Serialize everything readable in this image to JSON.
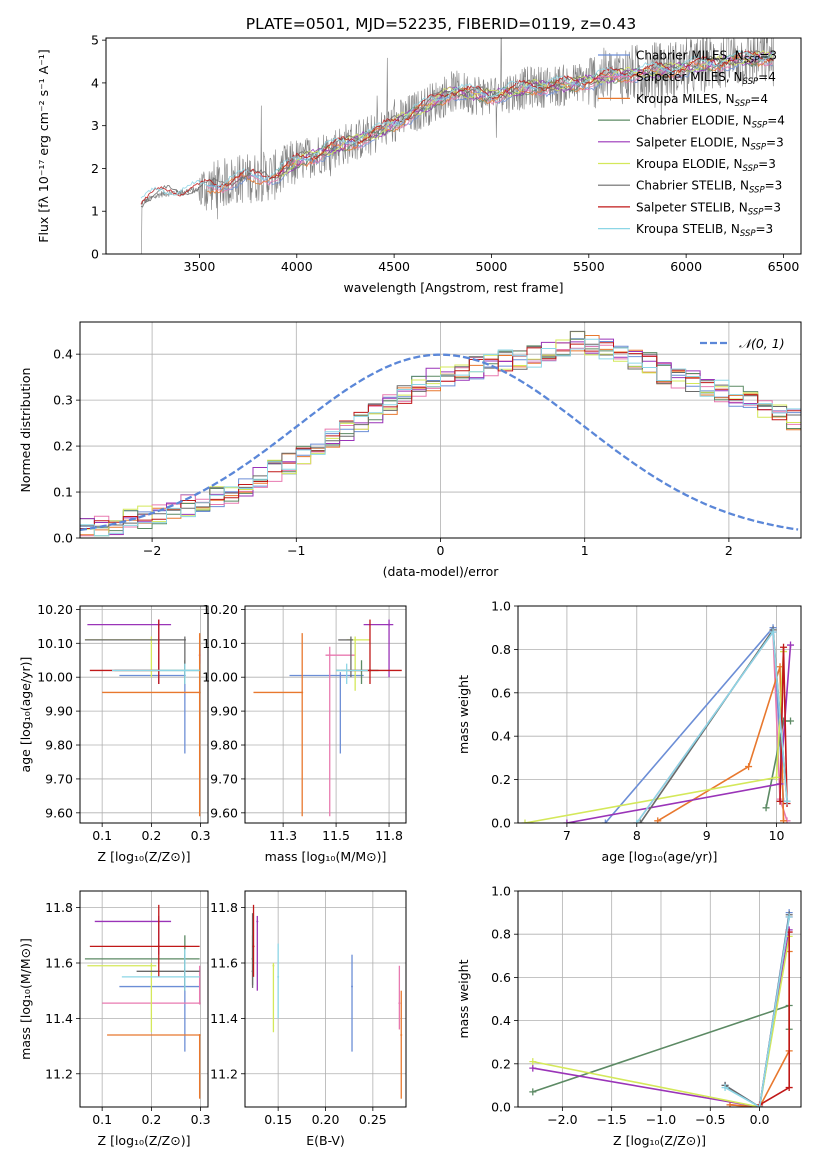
{
  "figure": {
    "title": "PLATE=0501, MJD=52235, FIBERID=0119, z=0.43"
  },
  "colors": {
    "chabrier_miles": "#6c8ed6",
    "salpeter_miles": "#e87ab0",
    "kroupa_miles": "#e8782e",
    "chabrier_elodie": "#5c8a64",
    "salpeter_elodie": "#9a34b8",
    "kroupa_elodie": "#d4e85a",
    "chabrier_stelib": "#6a6a6a",
    "salpeter_stelib": "#c01818",
    "kroupa_stelib": "#8cd6e6",
    "spectrum": "#808080",
    "gaussian": "#5b87d8",
    "grid": "#b0b0b0"
  },
  "chart_data": [
    {
      "id": "spectrum",
      "type": "line",
      "title": "PLATE=0501, MJD=52235, FIBERID=0119, z=0.43",
      "xlabel": "wavelength [Angstrom, rest frame]",
      "ylabel": "Flux [fλ 10⁻¹⁷ erg cm⁻² s⁻¹ A⁻¹]",
      "xlim": [
        3020,
        6590
      ],
      "ylim": [
        0,
        5.05
      ],
      "xticks": [
        3500,
        4000,
        4500,
        5000,
        5500,
        6000,
        6500
      ],
      "yticks": [
        0,
        1,
        2,
        3,
        4,
        5
      ],
      "grid": false,
      "legend_position": "upper-right",
      "legend": [
        "Chabrier MILES, N_SSP=3",
        "Salpeter MILES, N_SSP=4",
        "Kroupa MILES, N_SSP=4",
        "Chabrier ELODIE, N_SSP=4",
        "Salpeter ELODIE, N_SSP=3",
        "Kroupa ELODIE, N_SSP=3",
        "Chabrier STELIB, N_SSP=3",
        "Salpeter STELIB, N_SSP=3",
        "Kroupa STELIB, N_SSP=3"
      ],
      "continuum_wavelength": [
        3200,
        3300,
        3500,
        3700,
        3900,
        4000,
        4200,
        4400,
        4600,
        4800,
        5000,
        5200,
        5400,
        5600,
        5800,
        6000,
        6200,
        6400,
        6450
      ],
      "continuum_flux": [
        1.2,
        1.4,
        1.5,
        1.75,
        1.85,
        2.15,
        2.5,
        2.8,
        3.3,
        3.8,
        3.7,
        3.9,
        3.95,
        4.15,
        4.25,
        4.35,
        4.5,
        4.6,
        4.6
      ]
    },
    {
      "id": "residuals",
      "type": "histogram",
      "xlabel": "(data-model)/error",
      "ylabel": "Normed distribution",
      "xlim": [
        -2.5,
        2.5
      ],
      "ylim": [
        0,
        0.47
      ],
      "xticks": [
        -2,
        -1,
        0,
        1,
        2
      ],
      "yticks": [
        0.0,
        0.1,
        0.2,
        0.3,
        0.4
      ],
      "grid": true,
      "legend_position": "upper-right",
      "legend": [
        "𝒩(0, 1)"
      ],
      "bin_width": 0.1,
      "bin_start": -2.5,
      "model_heights": [
        0.02,
        0.025,
        0.03,
        0.04,
        0.045,
        0.05,
        0.06,
        0.07,
        0.08,
        0.09,
        0.1,
        0.115,
        0.13,
        0.145,
        0.16,
        0.18,
        0.2,
        0.215,
        0.235,
        0.255,
        0.27,
        0.29,
        0.31,
        0.33,
        0.345,
        0.355,
        0.36,
        0.37,
        0.375,
        0.385,
        0.39,
        0.395,
        0.41,
        0.42,
        0.43,
        0.42,
        0.41,
        0.4,
        0.39,
        0.38,
        0.36,
        0.35,
        0.34,
        0.33,
        0.32,
        0.31,
        0.3,
        0.28,
        0.27,
        0.26,
        0.24,
        0.225,
        0.21,
        0.19,
        0.175,
        0.16,
        0.145,
        0.13,
        0.12,
        0.11,
        0.1,
        0.09,
        0.08,
        0.07,
        0.06,
        0.05,
        0.045,
        0.04,
        0.03,
        0.025,
        0.02
      ]
    },
    {
      "id": "age_vs_Z",
      "type": "scatter",
      "xlabel": "Z [log₁₀(Z/Z⊙)]",
      "ylabel": "age  [log₁₀(age/yr)]",
      "xlim": [
        0.055,
        0.315
      ],
      "ylim": [
        9.57,
        10.21
      ],
      "xticks": [
        0.1,
        0.2,
        0.3
      ],
      "yticks": [
        9.6,
        9.7,
        9.8,
        9.9,
        10.0,
        10.1,
        10.2
      ],
      "grid": true,
      "points": [
        {
          "model": "chabrier_miles",
          "x": 0.268,
          "y": 10.005,
          "xerr": [
            0.135,
            0.268
          ],
          "yerr": [
            9.775,
            10.015
          ]
        },
        {
          "model": "salpeter_miles",
          "x": 0.298,
          "y": 10.065,
          "xerr": [
            0.298,
            0.298
          ],
          "yerr": [
            10.04,
            10.09
          ]
        },
        {
          "model": "kroupa_miles",
          "x": 0.298,
          "y": 9.955,
          "xerr": [
            0.1,
            0.298
          ],
          "yerr": [
            9.59,
            10.13
          ]
        },
        {
          "model": "chabrier_elodie",
          "x": 0.268,
          "y": 10.02,
          "xerr": [
            0.125,
            0.298
          ],
          "yerr": [
            9.98,
            10.05
          ]
        },
        {
          "model": "salpeter_elodie",
          "x": 0.215,
          "y": 10.155,
          "xerr": [
            0.07,
            0.24
          ],
          "yerr": [
            9.98,
            10.17
          ]
        },
        {
          "model": "kroupa_elodie",
          "x": 0.2,
          "y": 10.11,
          "xerr": [
            0.065,
            0.21
          ],
          "yerr": [
            10.0,
            10.12
          ]
        },
        {
          "model": "chabrier_stelib",
          "x": 0.268,
          "y": 10.11,
          "xerr": [
            0.065,
            0.27
          ],
          "yerr": [
            10.0,
            10.12
          ]
        },
        {
          "model": "salpeter_stelib",
          "x": 0.215,
          "y": 10.02,
          "xerr": [
            0.075,
            0.215
          ],
          "yerr": [
            9.98,
            10.17
          ]
        },
        {
          "model": "kroupa_stelib",
          "x": 0.268,
          "y": 10.02,
          "xerr": [
            0.12,
            0.298
          ],
          "yerr": [
            9.98,
            10.04
          ]
        }
      ]
    },
    {
      "id": "age_vs_mass",
      "type": "scatter",
      "xlabel": "mass [log₁₀(M/M⊙)]",
      "ylabel": "",
      "xlim": [
        11.07,
        11.83
      ],
      "ylim": [
        9.57,
        10.21
      ],
      "xticks": [
        11.25,
        11.5,
        11.75
      ],
      "yticks": [
        9.6,
        9.7,
        9.8,
        9.9,
        10.0,
        10.1,
        10.2
      ],
      "grid": true,
      "points": [
        {
          "model": "chabrier_miles",
          "x": 11.52,
          "y": 10.005,
          "xerr": [
            11.28,
            11.63
          ],
          "yerr": [
            9.775,
            10.015
          ]
        },
        {
          "model": "salpeter_miles",
          "x": 11.47,
          "y": 10.065,
          "xerr": [
            11.45,
            11.59
          ],
          "yerr": [
            9.59,
            10.09
          ]
        },
        {
          "model": "kroupa_miles",
          "x": 11.34,
          "y": 9.955,
          "xerr": [
            11.11,
            11.34
          ],
          "yerr": [
            9.59,
            10.13
          ]
        },
        {
          "model": "chabrier_elodie",
          "x": 11.62,
          "y": 10.02,
          "xerr": [
            11.5,
            11.7
          ],
          "yerr": [
            9.98,
            10.05
          ]
        },
        {
          "model": "salpeter_elodie",
          "x": 11.75,
          "y": 10.155,
          "xerr": [
            11.63,
            11.77
          ],
          "yerr": [
            10.0,
            10.17
          ]
        },
        {
          "model": "kroupa_elodie",
          "x": 11.59,
          "y": 10.11,
          "xerr": [
            11.55,
            11.66
          ],
          "yerr": [
            9.96,
            10.12
          ]
        },
        {
          "model": "chabrier_stelib",
          "x": 11.57,
          "y": 10.11,
          "xerr": [
            11.51,
            11.58
          ],
          "yerr": [
            10.0,
            10.12
          ]
        },
        {
          "model": "salpeter_stelib",
          "x": 11.66,
          "y": 10.02,
          "xerr": [
            11.55,
            11.81
          ],
          "yerr": [
            9.98,
            10.17
          ]
        },
        {
          "model": "kroupa_stelib",
          "x": 11.55,
          "y": 10.02,
          "xerr": [
            11.5,
            11.65
          ],
          "yerr": [
            9.98,
            10.04
          ]
        }
      ]
    },
    {
      "id": "weight_vs_age",
      "type": "line",
      "xlabel": "age  [log₁₀(age/yr)]",
      "ylabel": "mass weight",
      "xlim": [
        6.3,
        10.35
      ],
      "ylim": [
        0,
        1.0
      ],
      "xticks": [
        7,
        8,
        9,
        10
      ],
      "yticks": [
        0.0,
        0.2,
        0.4,
        0.6,
        0.8,
        1.0
      ],
      "grid": true,
      "series": [
        {
          "model": "chabrier_miles",
          "x": [
            7.55,
            9.95,
            10.1
          ],
          "y": [
            0.0,
            0.9,
            0.1
          ]
        },
        {
          "model": "salpeter_miles",
          "x": [
            8.0,
            9.95,
            10.05,
            10.15
          ],
          "y": [
            0.0,
            0.88,
            0.11,
            0.01
          ]
        },
        {
          "model": "kroupa_miles",
          "x": [
            8.3,
            9.6,
            10.05,
            10.1
          ],
          "y": [
            0.01,
            0.26,
            0.72,
            0.01
          ]
        },
        {
          "model": "chabrier_elodie",
          "x": [
            9.85,
            10.1,
            10.2
          ],
          "y": [
            0.07,
            0.47,
            0.47
          ]
        },
        {
          "model": "salpeter_elodie",
          "x": [
            7.0,
            10.05,
            10.2
          ],
          "y": [
            0.0,
            0.18,
            0.82
          ]
        },
        {
          "model": "kroupa_elodie",
          "x": [
            6.4,
            10.0,
            10.1
          ],
          "y": [
            0.0,
            0.21,
            0.79
          ]
        },
        {
          "model": "chabrier_stelib",
          "x": [
            8.05,
            9.95,
            10.15
          ],
          "y": [
            0.0,
            0.89,
            0.1
          ]
        },
        {
          "model": "salpeter_stelib",
          "x": [
            10.05,
            10.1,
            10.15
          ],
          "y": [
            0.1,
            0.81,
            0.09
          ]
        },
        {
          "model": "kroupa_stelib",
          "x": [
            8.0,
            9.95,
            10.15
          ],
          "y": [
            0.0,
            0.88,
            0.1
          ]
        }
      ]
    },
    {
      "id": "mass_vs_Z",
      "type": "scatter",
      "xlabel": "Z [log₁₀(Z/Z⊙)]",
      "ylabel": "mass [log₁₀(M/M⊙)]",
      "xlim": [
        0.055,
        0.315
      ],
      "ylim": [
        11.08,
        11.86
      ],
      "xticks": [
        0.1,
        0.2,
        0.3
      ],
      "yticks": [
        11.2,
        11.4,
        11.6,
        11.8
      ],
      "grid": true,
      "points": [
        {
          "model": "chabrier_miles",
          "x": 0.268,
          "y": 11.515,
          "xerr": [
            0.135,
            0.298
          ],
          "yerr": [
            11.28,
            11.63
          ]
        },
        {
          "model": "salpeter_miles",
          "x": 0.298,
          "y": 11.455,
          "xerr": [
            0.1,
            0.298
          ],
          "yerr": [
            11.45,
            11.59
          ]
        },
        {
          "model": "kroupa_miles",
          "x": 0.298,
          "y": 11.34,
          "xerr": [
            0.11,
            0.298
          ],
          "yerr": [
            11.11,
            11.34
          ]
        },
        {
          "model": "chabrier_elodie",
          "x": 0.268,
          "y": 11.615,
          "xerr": [
            0.065,
            0.298
          ],
          "yerr": [
            11.5,
            11.7
          ]
        },
        {
          "model": "salpeter_elodie",
          "x": 0.215,
          "y": 11.75,
          "xerr": [
            0.085,
            0.24
          ],
          "yerr": [
            11.63,
            11.77
          ]
        },
        {
          "model": "kroupa_elodie",
          "x": 0.2,
          "y": 11.59,
          "xerr": [
            0.07,
            0.21
          ],
          "yerr": [
            11.35,
            11.6
          ]
        },
        {
          "model": "chabrier_stelib",
          "x": 0.268,
          "y": 11.57,
          "xerr": [
            0.17,
            0.298
          ],
          "yerr": [
            11.51,
            11.58
          ]
        },
        {
          "model": "salpeter_stelib",
          "x": 0.215,
          "y": 11.66,
          "xerr": [
            0.075,
            0.298
          ],
          "yerr": [
            11.55,
            11.81
          ]
        },
        {
          "model": "kroupa_stelib",
          "x": 0.268,
          "y": 11.55,
          "xerr": [
            0.14,
            0.298
          ],
          "yerr": [
            11.5,
            11.65
          ]
        }
      ]
    },
    {
      "id": "mass_vs_ebv",
      "type": "scatter",
      "xlabel": "E(B-V)",
      "ylabel": "",
      "xlim": [
        0.115,
        0.285
      ],
      "ylim": [
        11.08,
        11.86
      ],
      "xticks": [
        0.15,
        0.2,
        0.25
      ],
      "yticks": [
        11.2,
        11.4,
        11.6,
        11.8
      ],
      "grid": true,
      "points": [
        {
          "model": "chabrier_miles",
          "x": 0.228,
          "y": 11.515,
          "yerr": [
            11.28,
            11.63
          ]
        },
        {
          "model": "salpeter_miles",
          "x": 0.278,
          "y": 11.455,
          "yerr": [
            11.36,
            11.59
          ]
        },
        {
          "model": "kroupa_miles",
          "x": 0.28,
          "y": 11.34,
          "yerr": [
            11.11,
            11.5
          ]
        },
        {
          "model": "chabrier_elodie",
          "x": 0.123,
          "y": 11.615,
          "yerr": [
            11.52,
            11.7
          ]
        },
        {
          "model": "salpeter_elodie",
          "x": 0.128,
          "y": 11.75,
          "yerr": [
            11.5,
            11.77
          ]
        },
        {
          "model": "kroupa_elodie",
          "x": 0.145,
          "y": 11.59,
          "yerr": [
            11.35,
            11.6
          ]
        },
        {
          "model": "chabrier_stelib",
          "x": 0.123,
          "y": 11.57,
          "yerr": [
            11.51,
            11.78
          ]
        },
        {
          "model": "salpeter_stelib",
          "x": 0.124,
          "y": 11.66,
          "yerr": [
            11.55,
            11.81
          ]
        },
        {
          "model": "kroupa_stelib",
          "x": 0.15,
          "y": 11.55,
          "yerr": [
            11.4,
            11.67
          ]
        }
      ]
    },
    {
      "id": "weight_vs_Z",
      "type": "line",
      "xlabel": "Z [log₁₀(Z/Z⊙)]",
      "ylabel": "mass weight",
      "xlim": [
        -2.45,
        0.42
      ],
      "ylim": [
        0,
        1.0
      ],
      "xticks": [
        -2.0,
        -1.5,
        -1.0,
        -0.5,
        0.0
      ],
      "yticks": [
        0.0,
        0.2,
        0.4,
        0.6,
        0.8,
        1.0
      ],
      "grid": true,
      "series": [
        {
          "model": "chabrier_miles",
          "x": [
            -0.35,
            0.0,
            0.3
          ],
          "y": [
            0.1,
            0.0,
            0.9
          ]
        },
        {
          "model": "salpeter_miles",
          "x": [
            -0.3,
            0.0,
            0.3
          ],
          "y": [
            0.01,
            0.0,
            0.88
          ]
        },
        {
          "model": "kroupa_miles",
          "x": [
            -0.3,
            0.0,
            0.3,
            0.3
          ],
          "y": [
            0.01,
            0.0,
            0.26,
            0.72
          ]
        },
        {
          "model": "chabrier_elodie",
          "x": [
            -2.3,
            0.3,
            0.3
          ],
          "y": [
            0.07,
            0.47,
            0.36
          ]
        },
        {
          "model": "salpeter_elodie",
          "x": [
            -2.3,
            0.0,
            0.3
          ],
          "y": [
            0.18,
            0.0,
            0.82
          ]
        },
        {
          "model": "kroupa_elodie",
          "x": [
            -2.3,
            0.0,
            0.3
          ],
          "y": [
            0.21,
            0.0,
            0.79
          ]
        },
        {
          "model": "chabrier_stelib",
          "x": [
            -0.35,
            0.0,
            0.3
          ],
          "y": [
            0.1,
            0.0,
            0.89
          ]
        },
        {
          "model": "salpeter_stelib",
          "x": [
            0.0,
            0.3,
            0.3
          ],
          "y": [
            0.01,
            0.09,
            0.81
          ]
        },
        {
          "model": "kroupa_stelib",
          "x": [
            -0.35,
            0.0,
            0.3
          ],
          "y": [
            0.09,
            0.0,
            0.88
          ]
        }
      ]
    }
  ]
}
